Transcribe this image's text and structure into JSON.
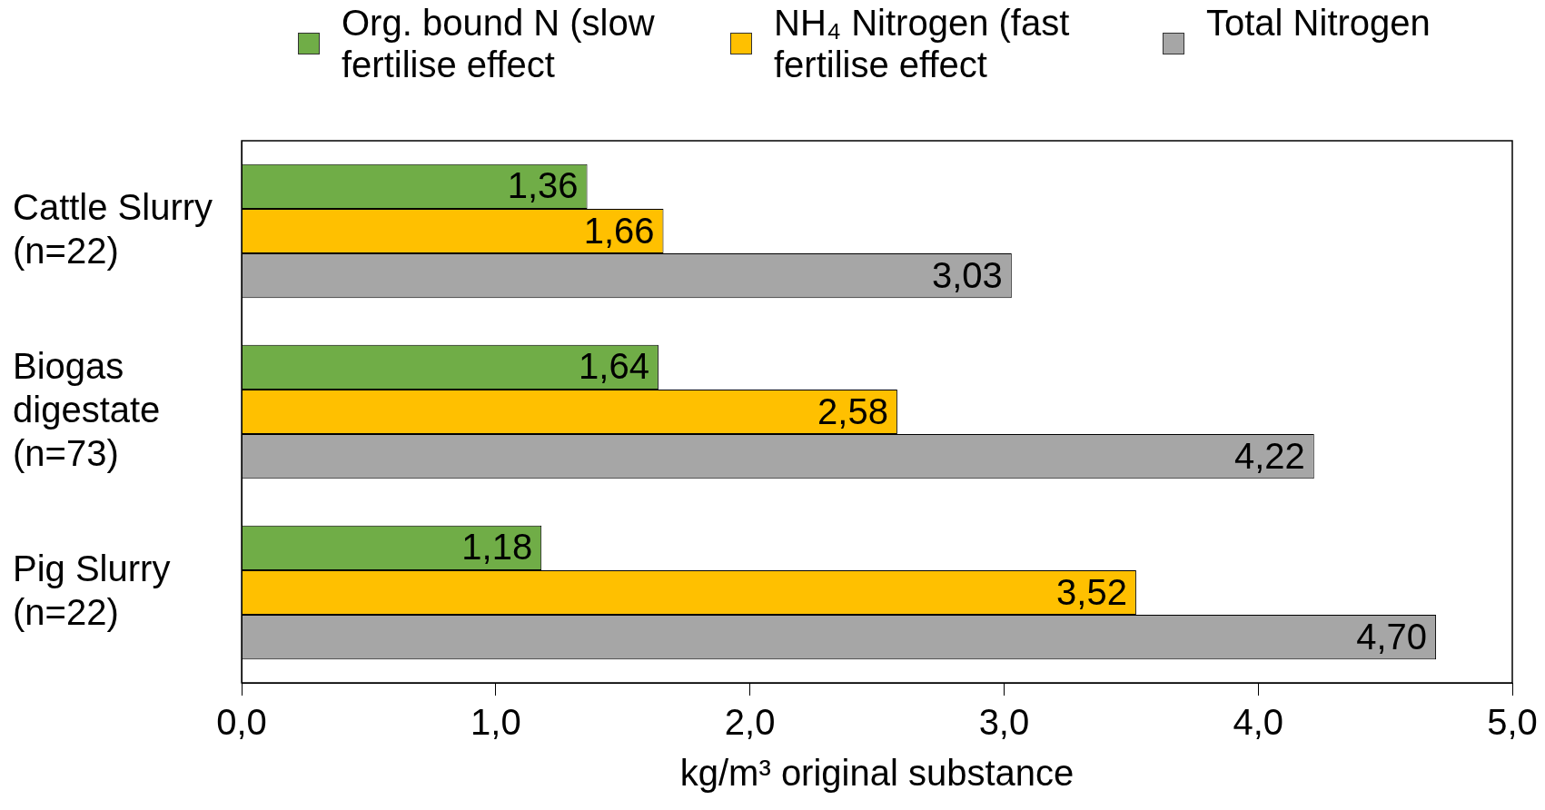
{
  "chart_data": {
    "type": "bar",
    "orientation": "horizontal",
    "xlabel": "kg/m³ original substance",
    "categories": [
      "Cattle Slurry (n=22)",
      "Biogas digestate (n=73)",
      "Pig Slurry (n=22)"
    ],
    "series": [
      {
        "name": "Org. bound N (slow fertilise effect",
        "color": "#70ad47",
        "values": [
          1.36,
          1.64,
          1.18
        ],
        "value_labels": [
          "1,36",
          "1,64",
          "1,18"
        ]
      },
      {
        "name": "NH₄ Nitrogen (fast fertilise effect",
        "color": "#ffc000",
        "values": [
          1.66,
          2.58,
          3.52
        ],
        "value_labels": [
          "1,66",
          "2,58",
          "3,52"
        ]
      },
      {
        "name": "Total Nitrogen",
        "color": "#a6a6a6",
        "values": [
          3.03,
          4.22,
          4.7
        ],
        "value_labels": [
          "3,03",
          "4,22",
          "4,70"
        ]
      }
    ],
    "xlim": [
      0,
      5
    ],
    "xticks": [
      {
        "value": 0,
        "label": "0,0"
      },
      {
        "value": 1,
        "label": "1,0"
      },
      {
        "value": 2,
        "label": "2,0"
      },
      {
        "value": 3,
        "label": "3,0"
      },
      {
        "value": 4,
        "label": "4,0"
      },
      {
        "value": 5,
        "label": "5,0"
      }
    ],
    "legend": "top",
    "grid": false
  }
}
